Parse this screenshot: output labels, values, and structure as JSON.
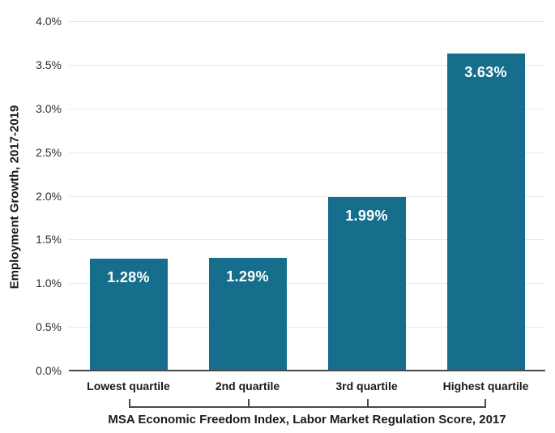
{
  "chart_data": {
    "type": "bar",
    "categories": [
      "Lowest quartile",
      "2nd quartile",
      "3rd quartile",
      "Highest quartile"
    ],
    "values": [
      1.28,
      1.29,
      1.99,
      3.63
    ],
    "bar_labels": [
      "1.28%",
      "1.29%",
      "1.99%",
      "3.63%"
    ],
    "xlabel": "MSA Economic Freedom Index, Labor Market Regulation Score, 2017",
    "ylabel": "Employment Growth, 2017-2019",
    "ylim": [
      0,
      4
    ],
    "ytick_step": 0.5,
    "ytick_labels": [
      "0.0%",
      "0.5%",
      "1.0%",
      "1.5%",
      "2.0%",
      "2.5%",
      "3.0%",
      "3.5%",
      "4.0%"
    ],
    "grid": true,
    "legend_position": "none",
    "colors": {
      "bar": "#156f8c",
      "gridline": "#e8e8e8",
      "axis_line": "#4a4a4a",
      "bracket": "#4a4a4a",
      "ytick_text": "#2b2b2b",
      "category_text": "#1a1a1a",
      "title_text": "#1a1a1a",
      "data_label_text": "#ffffff",
      "background": "#ffffff"
    }
  }
}
